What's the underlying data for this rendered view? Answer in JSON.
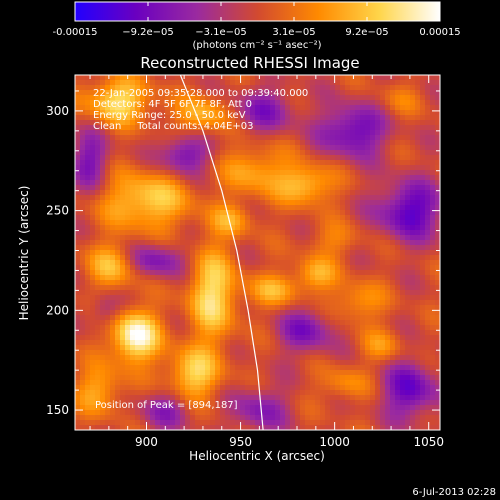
{
  "colorbar": {
    "tick_labels": [
      "-0.00015",
      "−9.2e−05",
      "−3.1e−05",
      "3.1e−05",
      "9.2e−05",
      "0.00015"
    ],
    "unit_label": "(photons cm⁻² s⁻¹ asec⁻²)",
    "colors": [
      "#2200ff",
      "#6a00c0",
      "#9a2aa0",
      "#d24a30",
      "#ff8a00",
      "#ffd54a",
      "#ffffff"
    ]
  },
  "chart_data": {
    "type": "heatmap",
    "title": "Reconstructed RHESSI Image",
    "xlabel": "Heliocentric X (arcsec)",
    "ylabel": "Heliocentric Y (arcsec)",
    "xlim": [
      862,
      1056
    ],
    "ylim": [
      140,
      318
    ],
    "x_ticks": [
      900,
      950,
      1000,
      1050
    ],
    "y_ticks": [
      150,
      200,
      250,
      300
    ],
    "vmin": -0.00015,
    "vmax": 0.00015,
    "info_lines": [
      "22-Jan-2005 09:35:28.000 to 09:39:40.000",
      "Detectors: 4F 5F 6F 7F 8F, Att 0",
      "Energy Range: 25.0 - 50.0 keV",
      "Clean     Total counts: 4.04E+03"
    ],
    "peak_label": "Position of Peak = [894,187]",
    "peak": [
      894,
      187
    ],
    "limb_curve": [
      [
        918,
        318
      ],
      [
        930,
        290
      ],
      [
        940,
        260
      ],
      [
        948,
        230
      ],
      [
        954,
        200
      ],
      [
        959,
        170
      ],
      [
        962,
        140
      ]
    ],
    "sources": [
      {
        "x": 894,
        "y": 187,
        "value": 0.00015,
        "sx": 9,
        "sy": 9
      },
      {
        "x": 885,
        "y": 305,
        "value": 0.00011,
        "sx": 12,
        "sy": 8
      },
      {
        "x": 930,
        "y": 298,
        "value": 8e-05,
        "sx": 10,
        "sy": 7
      },
      {
        "x": 900,
        "y": 255,
        "value": 0.0001,
        "sx": 16,
        "sy": 10
      },
      {
        "x": 935,
        "y": 208,
        "value": 0.00011,
        "sx": 9,
        "sy": 16
      },
      {
        "x": 882,
        "y": 222,
        "value": 8e-05,
        "sx": 10,
        "sy": 8
      },
      {
        "x": 925,
        "y": 168,
        "value": 0.0001,
        "sx": 10,
        "sy": 9
      },
      {
        "x": 875,
        "y": 160,
        "value": 7e-05,
        "sx": 9,
        "sy": 9
      },
      {
        "x": 958,
        "y": 270,
        "value": 7e-05,
        "sx": 12,
        "sy": 9
      },
      {
        "x": 985,
        "y": 263,
        "value": 9e-05,
        "sx": 10,
        "sy": 7
      },
      {
        "x": 990,
        "y": 218,
        "value": 7e-05,
        "sx": 8,
        "sy": 6
      },
      {
        "x": 968,
        "y": 210,
        "value": 7e-05,
        "sx": 10,
        "sy": 6
      },
      {
        "x": 1012,
        "y": 204,
        "value": 6e-05,
        "sx": 10,
        "sy": 7
      },
      {
        "x": 1000,
        "y": 235,
        "value": 4e-05,
        "sx": 10,
        "sy": 6
      },
      {
        "x": 1025,
        "y": 182,
        "value": 5e-05,
        "sx": 8,
        "sy": 6
      },
      {
        "x": 1005,
        "y": 163,
        "value": 5e-05,
        "sx": 9,
        "sy": 6
      },
      {
        "x": 945,
        "y": 245,
        "value": 6e-05,
        "sx": 8,
        "sy": 6
      },
      {
        "x": 1035,
        "y": 305,
        "value": 3e-05,
        "sx": 9,
        "sy": 6
      },
      {
        "x": 905,
        "y": 225,
        "value": -8e-05,
        "sx": 11,
        "sy": 6
      },
      {
        "x": 920,
        "y": 278,
        "value": -9e-05,
        "sx": 9,
        "sy": 7
      },
      {
        "x": 870,
        "y": 275,
        "value": -8e-05,
        "sx": 7,
        "sy": 10
      },
      {
        "x": 962,
        "y": 300,
        "value": -7e-05,
        "sx": 12,
        "sy": 8
      },
      {
        "x": 910,
        "y": 150,
        "value": -6e-05,
        "sx": 10,
        "sy": 7
      },
      {
        "x": 1010,
        "y": 290,
        "value": -0.0001,
        "sx": 12,
        "sy": 9
      },
      {
        "x": 1040,
        "y": 250,
        "value": -0.00011,
        "sx": 12,
        "sy": 10
      },
      {
        "x": 985,
        "y": 190,
        "value": -8e-05,
        "sx": 10,
        "sy": 8
      },
      {
        "x": 1040,
        "y": 160,
        "value": -0.0001,
        "sx": 10,
        "sy": 10
      },
      {
        "x": 960,
        "y": 150,
        "value": -7e-05,
        "sx": 10,
        "sy": 8
      },
      {
        "x": 878,
        "y": 200,
        "value": -5e-05,
        "sx": 6,
        "sy": 6
      }
    ]
  },
  "footer": {
    "date": "6-Jul-2013 02:28"
  }
}
